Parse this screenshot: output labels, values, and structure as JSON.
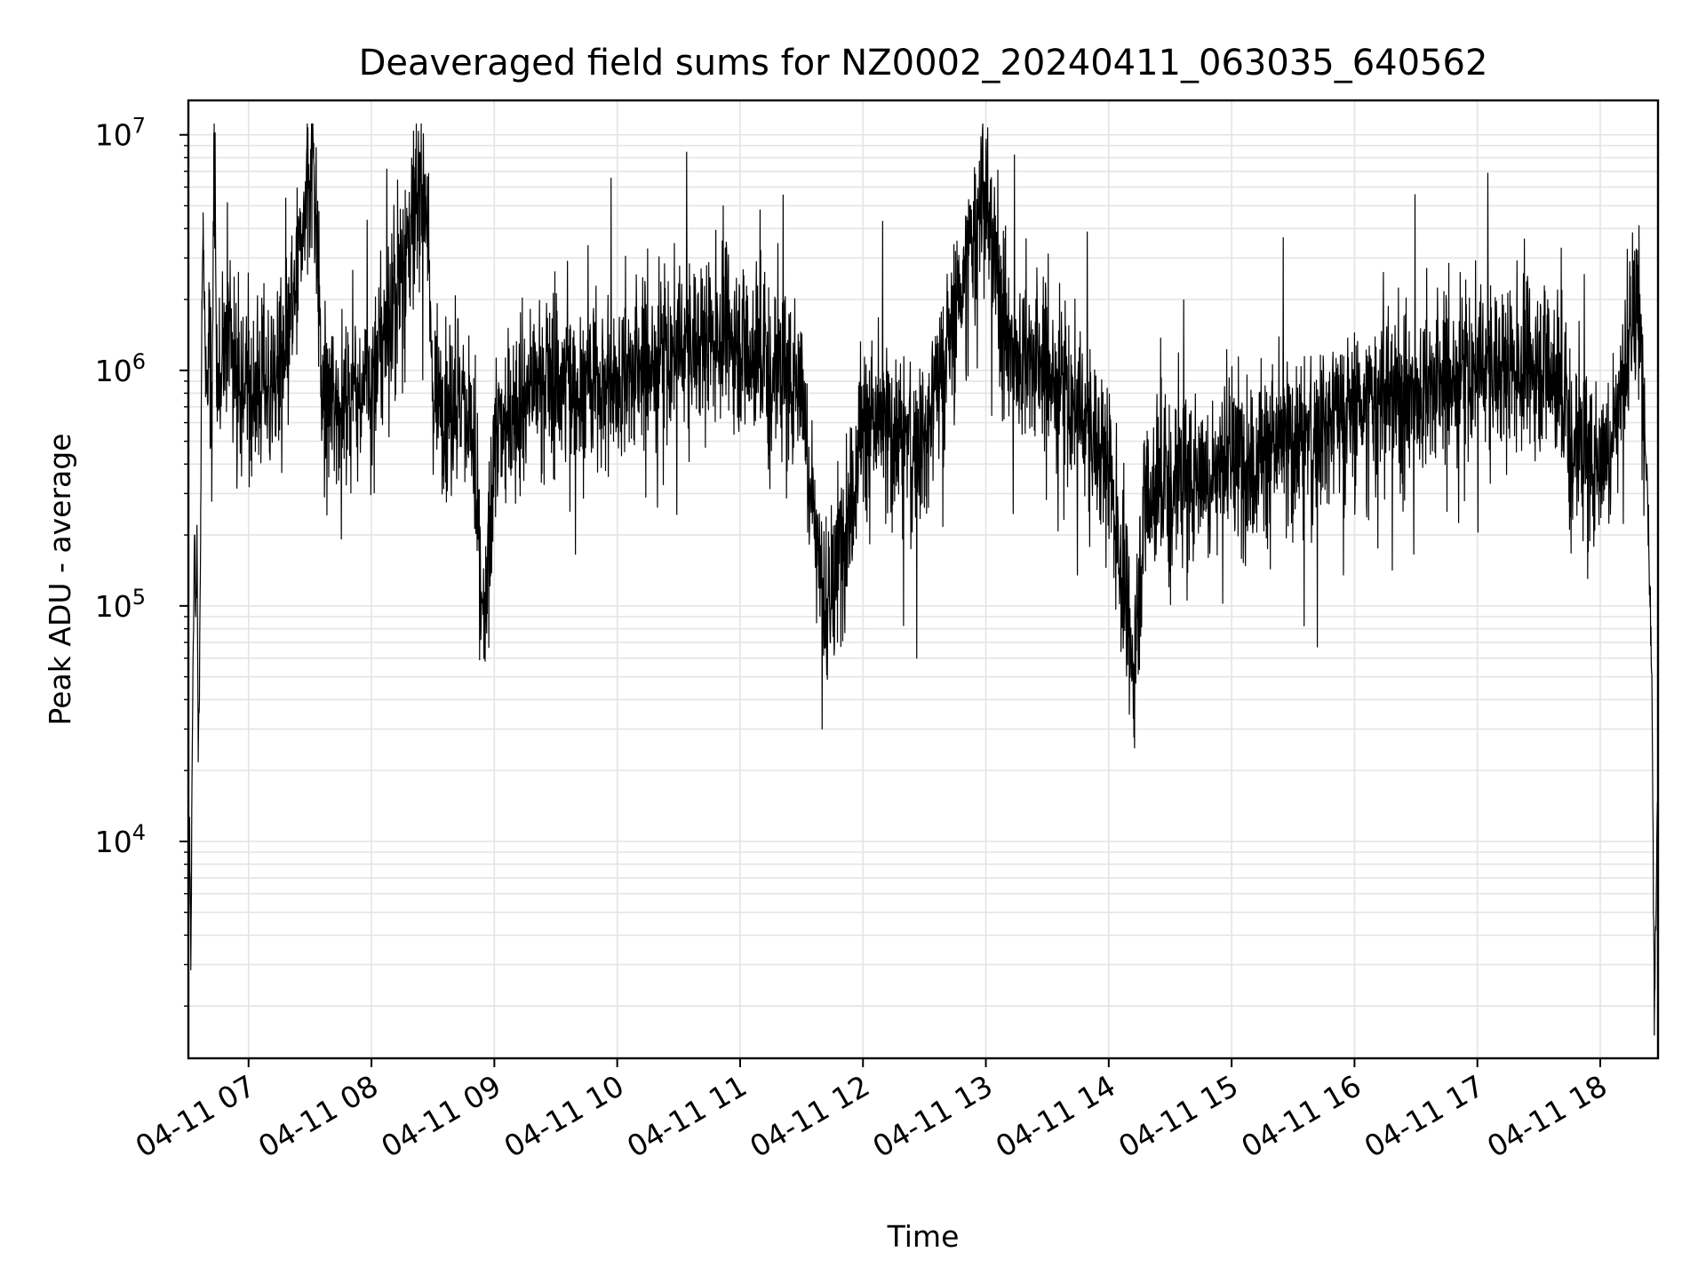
{
  "chart_data": {
    "type": "line",
    "title": "Deaveraged field sums for NZ0002_20240411_063035_640562",
    "xlabel": "Time",
    "ylabel": "Peak ADU - average",
    "x_ticks": [
      "04-11 07",
      "04-11 08",
      "04-11 09",
      "04-11 10",
      "04-11 11",
      "04-11 12",
      "04-11 13",
      "04-11 14",
      "04-11 15",
      "04-11 16",
      "04-11 17",
      "04-11 18"
    ],
    "x_tick_hours": [
      7,
      8,
      9,
      10,
      11,
      12,
      13,
      14,
      15,
      16,
      17,
      18
    ],
    "xlim_hours": [
      6.51,
      18.47
    ],
    "y_scale": "log",
    "ylim": [
      1200,
      14000000
    ],
    "y_ticks": [
      {
        "value": 10000,
        "base": "10",
        "exp": "4"
      },
      {
        "value": 100000,
        "base": "10",
        "exp": "5"
      },
      {
        "value": 1000000,
        "base": "10",
        "exp": "6"
      },
      {
        "value": 10000000,
        "base": "10",
        "exp": "7"
      }
    ],
    "grid": true,
    "line_color": "#000000",
    "grid_color": "#e4e4e4",
    "series": [
      {
        "name": "",
        "sample_step_hours": 0.0025,
        "notes_for_key_points": "",
        "key_points": [
          [
            6.51,
            2900
          ],
          [
            6.52,
            12000
          ],
          [
            6.53,
            3000
          ],
          [
            6.54,
            20000
          ],
          [
            6.56,
            200000
          ],
          [
            6.57,
            90000
          ],
          [
            6.58,
            220000
          ],
          [
            6.59,
            25000
          ],
          [
            6.6,
            40000
          ],
          [
            6.61,
            200000
          ],
          [
            6.62,
            2000000
          ],
          [
            6.63,
            4000000
          ],
          [
            6.65,
            900000
          ],
          [
            6.68,
            1700000
          ],
          [
            6.7,
            600000
          ],
          [
            6.72,
            9000000
          ],
          [
            6.74,
            700000
          ],
          [
            6.8,
            1500000
          ],
          [
            7.0,
            800000
          ],
          [
            7.3,
            1000000
          ],
          [
            7.53,
            9200000
          ],
          [
            7.6,
            700000
          ],
          [
            8.0,
            900000
          ],
          [
            8.44,
            6800000
          ],
          [
            8.5,
            800000
          ],
          [
            8.8,
            700000
          ],
          [
            8.92,
            65000
          ],
          [
            9.0,
            500000
          ],
          [
            9.3,
            900000
          ],
          [
            10.0,
            900000
          ],
          [
            10.5,
            1200000
          ],
          [
            10.9,
            1500000
          ],
          [
            11.0,
            1300000
          ],
          [
            11.5,
            900000
          ],
          [
            11.7,
            77000
          ],
          [
            12.0,
            600000
          ],
          [
            12.5,
            500000
          ],
          [
            12.98,
            5500000
          ],
          [
            13.2,
            1200000
          ],
          [
            13.5,
            1000000
          ],
          [
            13.8,
            600000
          ],
          [
            14.0,
            400000
          ],
          [
            14.2,
            55000
          ],
          [
            14.3,
            300000
          ],
          [
            14.5,
            350000
          ],
          [
            15.0,
            400000
          ],
          [
            15.5,
            500000
          ],
          [
            16.0,
            700000
          ],
          [
            16.5,
            800000
          ],
          [
            17.0,
            1000000
          ],
          [
            17.6,
            1100000
          ],
          [
            17.8,
            500000
          ],
          [
            18.0,
            400000
          ],
          [
            18.2,
            900000
          ],
          [
            18.3,
            2000000
          ],
          [
            18.38,
            400000
          ],
          [
            18.42,
            50000
          ],
          [
            18.44,
            1700
          ],
          [
            18.46,
            10000
          ],
          [
            18.47,
            18000
          ]
        ]
      }
    ]
  }
}
